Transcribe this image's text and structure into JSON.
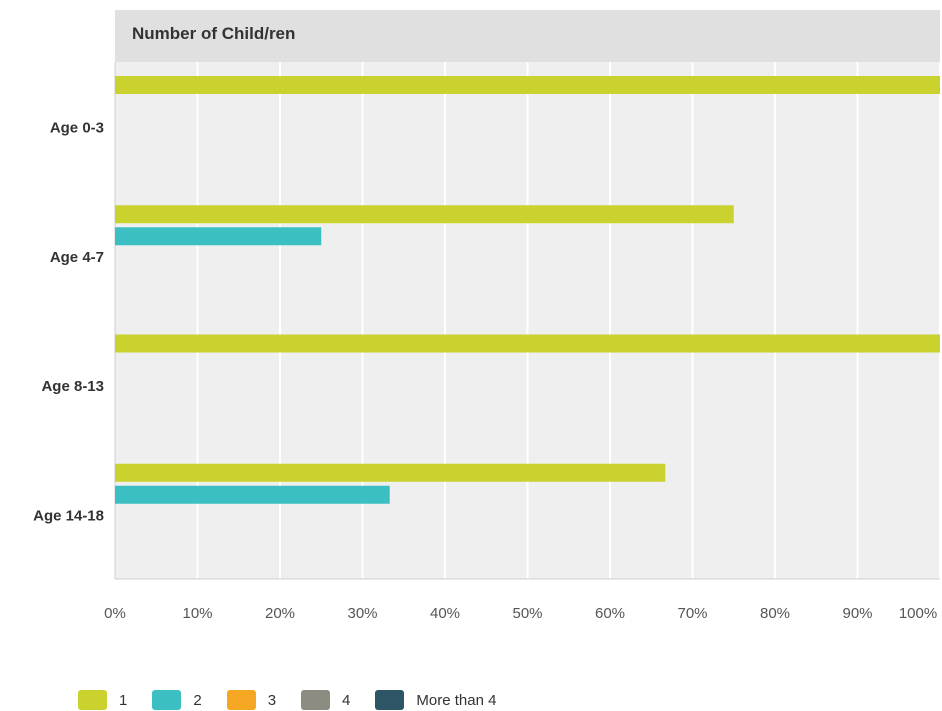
{
  "chart_data": {
    "type": "bar",
    "orientation": "horizontal",
    "title": "Number of Child/ren",
    "categories": [
      "Age 0-3",
      "Age 4-7",
      "Age 8-13",
      "Age 14-18"
    ],
    "series": [
      {
        "name": "1",
        "color": "#c9d22e",
        "values": [
          100,
          75,
          100,
          66.7
        ]
      },
      {
        "name": "2",
        "color": "#3bbfc3",
        "values": [
          0,
          25,
          0,
          33.3
        ]
      },
      {
        "name": "3",
        "color": "#f5a623",
        "values": [
          0,
          0,
          0,
          0
        ]
      },
      {
        "name": "4",
        "color": "#8c8c80",
        "values": [
          0,
          0,
          0,
          0
        ]
      },
      {
        "name": "More than 4",
        "color": "#2e5566",
        "values": [
          0,
          0,
          0,
          0
        ]
      }
    ],
    "x_ticks": [
      "0%",
      "10%",
      "20%",
      "30%",
      "40%",
      "50%",
      "60%",
      "70%",
      "80%",
      "90%",
      "100%"
    ],
    "xlim": [
      0,
      100
    ],
    "grid": true,
    "legend_position": "bottom-left"
  }
}
